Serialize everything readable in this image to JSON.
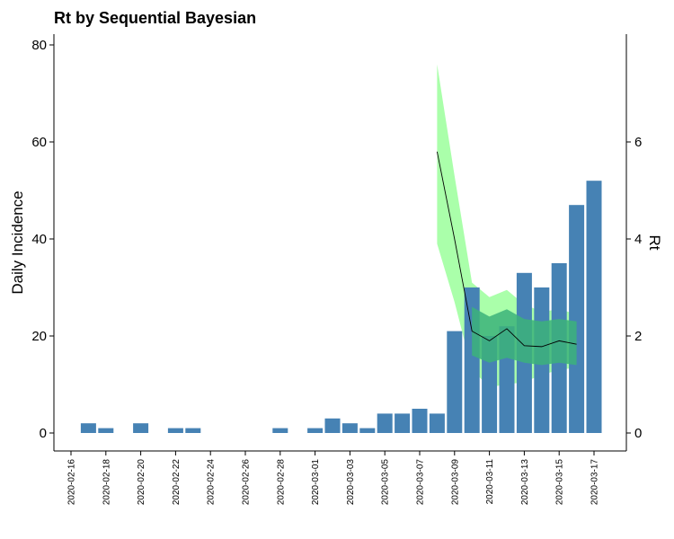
{
  "chart_data": {
    "type": "bar",
    "title": "Rt by Sequential Bayesian",
    "ylabel": "Daily Incidence",
    "ylabel_right": "Rt",
    "xlabel": "",
    "ylim": [
      0,
      80
    ],
    "ylim_right": [
      0,
      8
    ],
    "yticks": [
      0,
      20,
      40,
      60,
      80
    ],
    "yticks_right": [
      0,
      2,
      4,
      6
    ],
    "x_tick_labels": [
      "2020-02-16",
      "2020-02-18",
      "2020-02-20",
      "2020-02-22",
      "2020-02-24",
      "2020-02-26",
      "2020-02-28",
      "2020-03-01",
      "2020-03-03",
      "2020-03-05",
      "2020-03-07",
      "2020-03-09",
      "2020-03-11",
      "2020-03-13",
      "2020-03-15",
      "2020-03-17"
    ],
    "categories": [
      "2020-02-16",
      "2020-02-17",
      "2020-02-18",
      "2020-02-19",
      "2020-02-20",
      "2020-02-21",
      "2020-02-22",
      "2020-02-23",
      "2020-02-24",
      "2020-02-25",
      "2020-02-26",
      "2020-02-27",
      "2020-02-28",
      "2020-02-29",
      "2020-03-01",
      "2020-03-02",
      "2020-03-03",
      "2020-03-04",
      "2020-03-05",
      "2020-03-06",
      "2020-03-07",
      "2020-03-08",
      "2020-03-09",
      "2020-03-10",
      "2020-03-11",
      "2020-03-12",
      "2020-03-13",
      "2020-03-14",
      "2020-03-15",
      "2020-03-16",
      "2020-03-17"
    ],
    "values": [
      0,
      2,
      1,
      0,
      2,
      0,
      1,
      1,
      0,
      0,
      0,
      0,
      1,
      0,
      1,
      3,
      2,
      1,
      4,
      4,
      5,
      4,
      21,
      30,
      20,
      22,
      33,
      30,
      35,
      47,
      52
    ],
    "series": [
      {
        "type": "line",
        "x": [
          "2020-03-08",
          "2020-03-09",
          "2020-03-10",
          "2020-03-11",
          "2020-03-12",
          "2020-03-13",
          "2020-03-14",
          "2020-03-15",
          "2020-03-16"
        ],
        "values": [
          5.8,
          4.0,
          2.1,
          1.9,
          2.15,
          1.8,
          1.78,
          1.9,
          1.83
        ]
      },
      {
        "type": "band",
        "x": [
          "2020-03-08",
          "2020-03-09",
          "2020-03-10",
          "2020-03-11",
          "2020-03-12",
          "2020-03-13",
          "2020-03-14",
          "2020-03-15",
          "2020-03-16"
        ],
        "lower": [
          3.9,
          2.7,
          1.3,
          0.95,
          1.0,
          1.05,
          1.2,
          1.3,
          1.35
        ],
        "upper": [
          7.6,
          5.3,
          3.1,
          2.8,
          2.95,
          2.65,
          2.5,
          2.55,
          2.45
        ],
        "color": "#aaffaa"
      },
      {
        "type": "band",
        "x": [
          "2020-03-10",
          "2020-03-11",
          "2020-03-12",
          "2020-03-13",
          "2020-03-14",
          "2020-03-15",
          "2020-03-16"
        ],
        "lower": [
          1.6,
          1.45,
          1.55,
          1.45,
          1.4,
          1.45,
          1.4
        ],
        "upper": [
          2.6,
          2.4,
          2.55,
          2.35,
          2.3,
          2.35,
          2.3
        ],
        "color": "#3cb37a"
      }
    ],
    "bar_color": "#4682b4",
    "line_color": "#000000",
    "grid": false
  }
}
